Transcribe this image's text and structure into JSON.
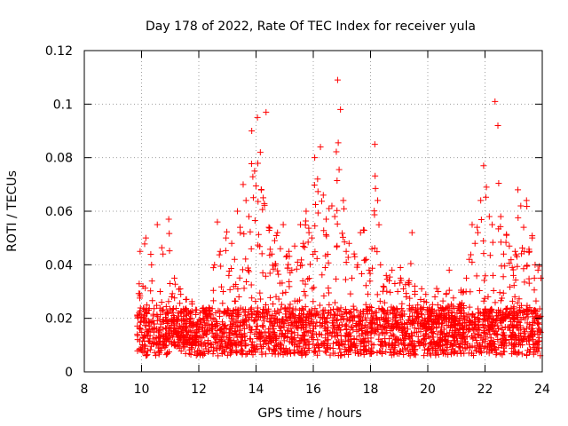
{
  "chart_data": {
    "type": "scatter",
    "title": "Day 178 of 2022, Rate Of TEC Index for receiver yula",
    "xlabel": "GPS time / hours",
    "ylabel": "ROTI / TECUs",
    "xlim": [
      8,
      24
    ],
    "ylim": [
      0,
      0.12
    ],
    "x_ticks": [
      8,
      10,
      12,
      14,
      16,
      18,
      20,
      22,
      24
    ],
    "y_ticks": [
      0,
      0.02,
      0.04,
      0.06,
      0.08,
      0.1,
      0.12
    ],
    "x_tick_labels": [
      "8",
      "10",
      "12",
      "14",
      "16",
      "18",
      "20",
      "22",
      "24"
    ],
    "y_tick_labels": [
      "0",
      "0.02",
      "0.04",
      "0.06",
      "0.08",
      "0.1",
      "0.12"
    ],
    "grid": true,
    "marker": "+",
    "color": "#ff0000",
    "series": [
      {
        "x": [
          9.85,
          9.95,
          10.05,
          10.15,
          10.25,
          10.35,
          10.45,
          10.55,
          10.65,
          10.75,
          10.85,
          10.95,
          11.05,
          11.15,
          11.25,
          11.35,
          11.45,
          11.55,
          11.65,
          11.75,
          11.85,
          11.95,
          12.05,
          12.15,
          12.25,
          12.35,
          12.45,
          12.55,
          12.65,
          12.75,
          12.85,
          12.95,
          13.05,
          13.15,
          13.25,
          13.35,
          13.45,
          13.55,
          13.65,
          13.75,
          13.85,
          13.95,
          14.05,
          14.15,
          14.25,
          14.35,
          14.45,
          14.55,
          14.65,
          14.75,
          14.85,
          14.95,
          15.05,
          15.15,
          15.25,
          15.35,
          15.45,
          15.55,
          15.65,
          15.75,
          15.85,
          15.95,
          16.05,
          16.15,
          16.25,
          16.35,
          16.45,
          16.55,
          16.65,
          16.75,
          16.85,
          16.95,
          17.05,
          17.15,
          17.25,
          17.35,
          17.45,
          17.55,
          17.65,
          17.75,
          17.85,
          17.95,
          18.05,
          18.15,
          18.25,
          18.35,
          18.45,
          18.55,
          18.65,
          18.75,
          18.85,
          18.95,
          19.05,
          19.15,
          19.25,
          19.35,
          19.45,
          19.55,
          19.65,
          19.75,
          19.85,
          19.95,
          20.05,
          20.15,
          20.25,
          20.35,
          20.45,
          20.55,
          20.65,
          20.75,
          20.85,
          20.95,
          21.05,
          21.15,
          21.25,
          21.35,
          21.45,
          21.55,
          21.65,
          21.75,
          21.85,
          21.95,
          22.05,
          22.15,
          22.25,
          22.35,
          22.45,
          22.55,
          22.65,
          22.75,
          22.85,
          22.95,
          23.05,
          23.15,
          23.25,
          23.35,
          23.45,
          23.55,
          23.65,
          23.75,
          23.85,
          23.95
        ],
        "y": [
          0.014,
          0.045,
          0.032,
          0.05,
          0.023,
          0.04,
          0.016,
          0.055,
          0.03,
          0.044,
          0.019,
          0.057,
          0.028,
          0.035,
          0.013,
          0.031,
          0.017,
          0.027,
          0.012,
          0.022,
          0.011,
          0.018,
          0.013,
          0.02,
          0.015,
          0.024,
          0.016,
          0.04,
          0.056,
          0.045,
          0.03,
          0.05,
          0.036,
          0.048,
          0.042,
          0.06,
          0.052,
          0.07,
          0.064,
          0.058,
          0.09,
          0.075,
          0.095,
          0.082,
          0.065,
          0.097,
          0.054,
          0.044,
          0.049,
          0.052,
          0.046,
          0.055,
          0.043,
          0.045,
          0.038,
          0.047,
          0.041,
          0.055,
          0.048,
          0.06,
          0.052,
          0.05,
          0.08,
          0.072,
          0.084,
          0.066,
          0.057,
          0.061,
          0.062,
          0.058,
          0.109,
          0.098,
          0.064,
          0.045,
          0.048,
          0.035,
          0.043,
          0.04,
          0.052,
          0.053,
          0.042,
          0.038,
          0.046,
          0.085,
          0.064,
          0.04,
          0.032,
          0.036,
          0.034,
          0.038,
          0.033,
          0.03,
          0.035,
          0.031,
          0.028,
          0.034,
          0.052,
          0.029,
          0.025,
          0.027,
          0.024,
          0.026,
          0.023,
          0.022,
          0.028,
          0.025,
          0.021,
          0.02,
          0.024,
          0.038,
          0.022,
          0.019,
          0.018,
          0.025,
          0.03,
          0.035,
          0.042,
          0.055,
          0.048,
          0.052,
          0.064,
          0.077,
          0.069,
          0.058,
          0.055,
          0.101,
          0.092,
          0.058,
          0.044,
          0.051,
          0.047,
          0.039,
          0.045,
          0.068,
          0.062,
          0.054,
          0.064,
          0.045,
          0.05,
          0.04,
          0.038,
          0.035
        ]
      }
    ]
  }
}
